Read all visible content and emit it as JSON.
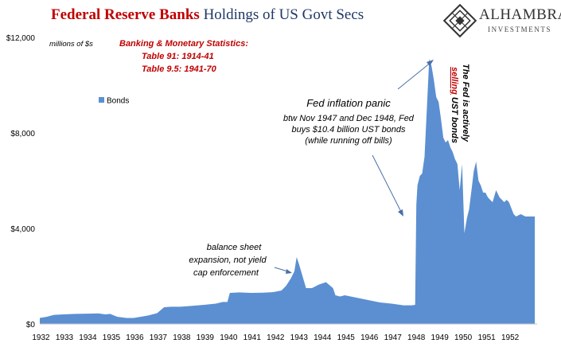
{
  "header": {
    "title_part1": "Federal Reserve Banks",
    "title_part2": "Holdings of US Govt Secs"
  },
  "logo": {
    "name": "ALHAMBRA",
    "subtitle": "INVESTMENTS",
    "brand_color": "#333333"
  },
  "colors": {
    "area": "#5b8fd1",
    "title_red": "#c00000",
    "title_blue": "#1f3864"
  },
  "annotations": {
    "units": "millions of $s",
    "source_line1": "Banking & Monetary Statistics:",
    "source_line2": "Table 91: 1914-41",
    "source_line3": "Table 9.5: 1941-70",
    "bs_line1": "balance sheet",
    "bs_line2": "expansion, not yield",
    "bs_line3": "cap enforcement",
    "panic_title": "Fed inflation panic",
    "panic_line1": "btw Nov 1947 and Dec 1948, Fed",
    "panic_line2": "buys $10.4 billion UST bonds",
    "panic_line3": "(while running off bills)",
    "selling_1": "The Fed is actively",
    "selling_2a": "selling",
    "selling_2b": " UST bonds"
  },
  "chart_data": {
    "type": "area",
    "title": "Federal Reserve Banks Holdings of US Govt Secs",
    "ylabel": "",
    "xlabel": "",
    "units": "millions of $s",
    "ylim": [
      0,
      12000
    ],
    "xlim": [
      1932.0,
      1953.2
    ],
    "y_ticks": [
      "$0",
      "$4,000",
      "$8,000",
      "$12,000"
    ],
    "y_tick_values": [
      0,
      4000,
      8000,
      12000
    ],
    "x_ticks": [
      "1932",
      "1933",
      "1934",
      "1935",
      "1936",
      "1937",
      "1938",
      "1939",
      "1940",
      "1941",
      "1942",
      "1943",
      "1944",
      "1945",
      "1946",
      "1947",
      "1948",
      "1949",
      "1950",
      "1951",
      "1952"
    ],
    "grid": false,
    "legend_position": "upper-left",
    "series": [
      {
        "name": "Bonds",
        "x": [
          1932.0,
          1932.3,
          1932.6,
          1933.0,
          1933.5,
          1934.0,
          1934.5,
          1934.8,
          1935.0,
          1935.3,
          1935.7,
          1936.0,
          1936.3,
          1936.6,
          1937.0,
          1937.3,
          1937.6,
          1938.0,
          1938.5,
          1939.0,
          1939.5,
          1939.8,
          1940.0,
          1940.1,
          1940.5,
          1941.0,
          1941.5,
          1941.9,
          1942.0,
          1942.3,
          1942.5,
          1942.7,
          1942.85,
          1942.95,
          1943.05,
          1943.2,
          1943.35,
          1943.6,
          1943.9,
          1944.2,
          1944.5,
          1944.6,
          1944.8,
          1945.0,
          1945.5,
          1946.0,
          1946.5,
          1947.0,
          1947.5,
          1947.85,
          1948.0,
          1948.05,
          1948.1,
          1948.2,
          1948.3,
          1948.4,
          1948.5,
          1948.6,
          1948.7,
          1948.8,
          1948.9,
          1949.0,
          1949.1,
          1949.2,
          1949.3,
          1949.4,
          1949.5,
          1949.6,
          1949.7,
          1949.8,
          1949.9,
          1950.0,
          1950.1,
          1950.2,
          1950.25,
          1950.3,
          1950.4,
          1950.5,
          1950.6,
          1950.7,
          1950.8,
          1950.9,
          1951.0,
          1951.1,
          1951.2,
          1951.3,
          1951.45,
          1951.6,
          1951.8,
          1951.9,
          1952.0,
          1952.2,
          1952.3,
          1952.5,
          1952.7,
          1952.8,
          1952.9,
          1953.0,
          1953.1
        ],
        "values": [
          250,
          300,
          380,
          400,
          420,
          430,
          440,
          400,
          420,
          300,
          250,
          250,
          300,
          350,
          450,
          700,
          720,
          720,
          760,
          800,
          850,
          920,
          920,
          1300,
          1320,
          1300,
          1310,
          1330,
          1340,
          1400,
          1600,
          1900,
          2200,
          2800,
          2500,
          2000,
          1500,
          1500,
          1650,
          1750,
          1500,
          1200,
          1150,
          1200,
          1100,
          1000,
          900,
          850,
          780,
          780,
          800,
          5000,
          5800,
          6200,
          6300,
          7000,
          9000,
          11100,
          10800,
          10200,
          9500,
          9300,
          8600,
          7800,
          7600,
          7700,
          7400,
          7200,
          6900,
          6700,
          5600,
          6700,
          3800,
          4400,
          4600,
          4800,
          5600,
          6400,
          6800,
          6000,
          5800,
          5500,
          5500,
          5300,
          5200,
          5100,
          5600,
          5300,
          5100,
          5200,
          5100,
          4600,
          4500,
          4600,
          4500,
          4500,
          4500,
          4500,
          4500
        ]
      }
    ]
  }
}
